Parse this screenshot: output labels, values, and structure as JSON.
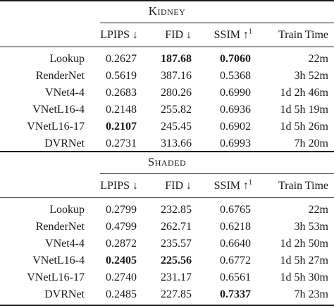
{
  "sections": [
    {
      "title": "Kidney",
      "headers": [
        "LPIPS ↓",
        "FID ↓",
        "SSIM ↑",
        "Train Time"
      ],
      "ssim_note": "1",
      "rows": [
        {
          "method": "Lookup",
          "lpips": "0.2627",
          "fid": "187.68",
          "ssim": "0.7060",
          "time": "22m",
          "bold": [
            "fid",
            "ssim"
          ]
        },
        {
          "method": "RenderNet",
          "lpips": "0.5619",
          "fid": "387.16",
          "ssim": "0.5368",
          "time": "3h 52m",
          "bold": []
        },
        {
          "method": "VNet4-4",
          "lpips": "0.2683",
          "fid": "280.26",
          "ssim": "0.6990",
          "time": "1d 2h 46m",
          "bold": []
        },
        {
          "method": "VNetL16-4",
          "lpips": "0.2148",
          "fid": "255.82",
          "ssim": "0.6936",
          "time": "1d 5h 19m",
          "bold": []
        },
        {
          "method": "VNetL16-17",
          "lpips": "0.2107",
          "fid": "245.45",
          "ssim": "0.6902",
          "time": "1d 5h 26m",
          "bold": [
            "lpips"
          ]
        },
        {
          "method": "DVRNet",
          "lpips": "0.2731",
          "fid": "313.66",
          "ssim": "0.6993",
          "time": "7h 20m",
          "bold": []
        }
      ]
    },
    {
      "title": "Shaded",
      "headers": [
        "LPIPS ↓",
        "FID ↓",
        "SSIM ↑",
        "Train Time"
      ],
      "ssim_note": "1",
      "rows": [
        {
          "method": "Lookup",
          "lpips": "0.2799",
          "fid": "232.85",
          "ssim": "0.6765",
          "time": "22m",
          "bold": []
        },
        {
          "method": "RenderNet",
          "lpips": "0.4799",
          "fid": "262.71",
          "ssim": "0.6218",
          "time": "3h 53m",
          "bold": []
        },
        {
          "method": "VNet4-4",
          "lpips": "0.2872",
          "fid": "235.57",
          "ssim": "0.6640",
          "time": "1d 2h 50m",
          "bold": []
        },
        {
          "method": "VNetL16-4",
          "lpips": "0.2405",
          "fid": "225.56",
          "ssim": "0.6772",
          "time": "1d 5h 27m",
          "bold": [
            "lpips",
            "fid"
          ]
        },
        {
          "method": "VNetL16-17",
          "lpips": "0.2740",
          "fid": "231.17",
          "ssim": "0.6561",
          "time": "1d 5h 30m",
          "bold": []
        },
        {
          "method": "DVRNet",
          "lpips": "0.2485",
          "fid": "227.85",
          "ssim": "0.7337",
          "time": "7h 23m",
          "bold": [
            "ssim"
          ]
        }
      ]
    }
  ]
}
